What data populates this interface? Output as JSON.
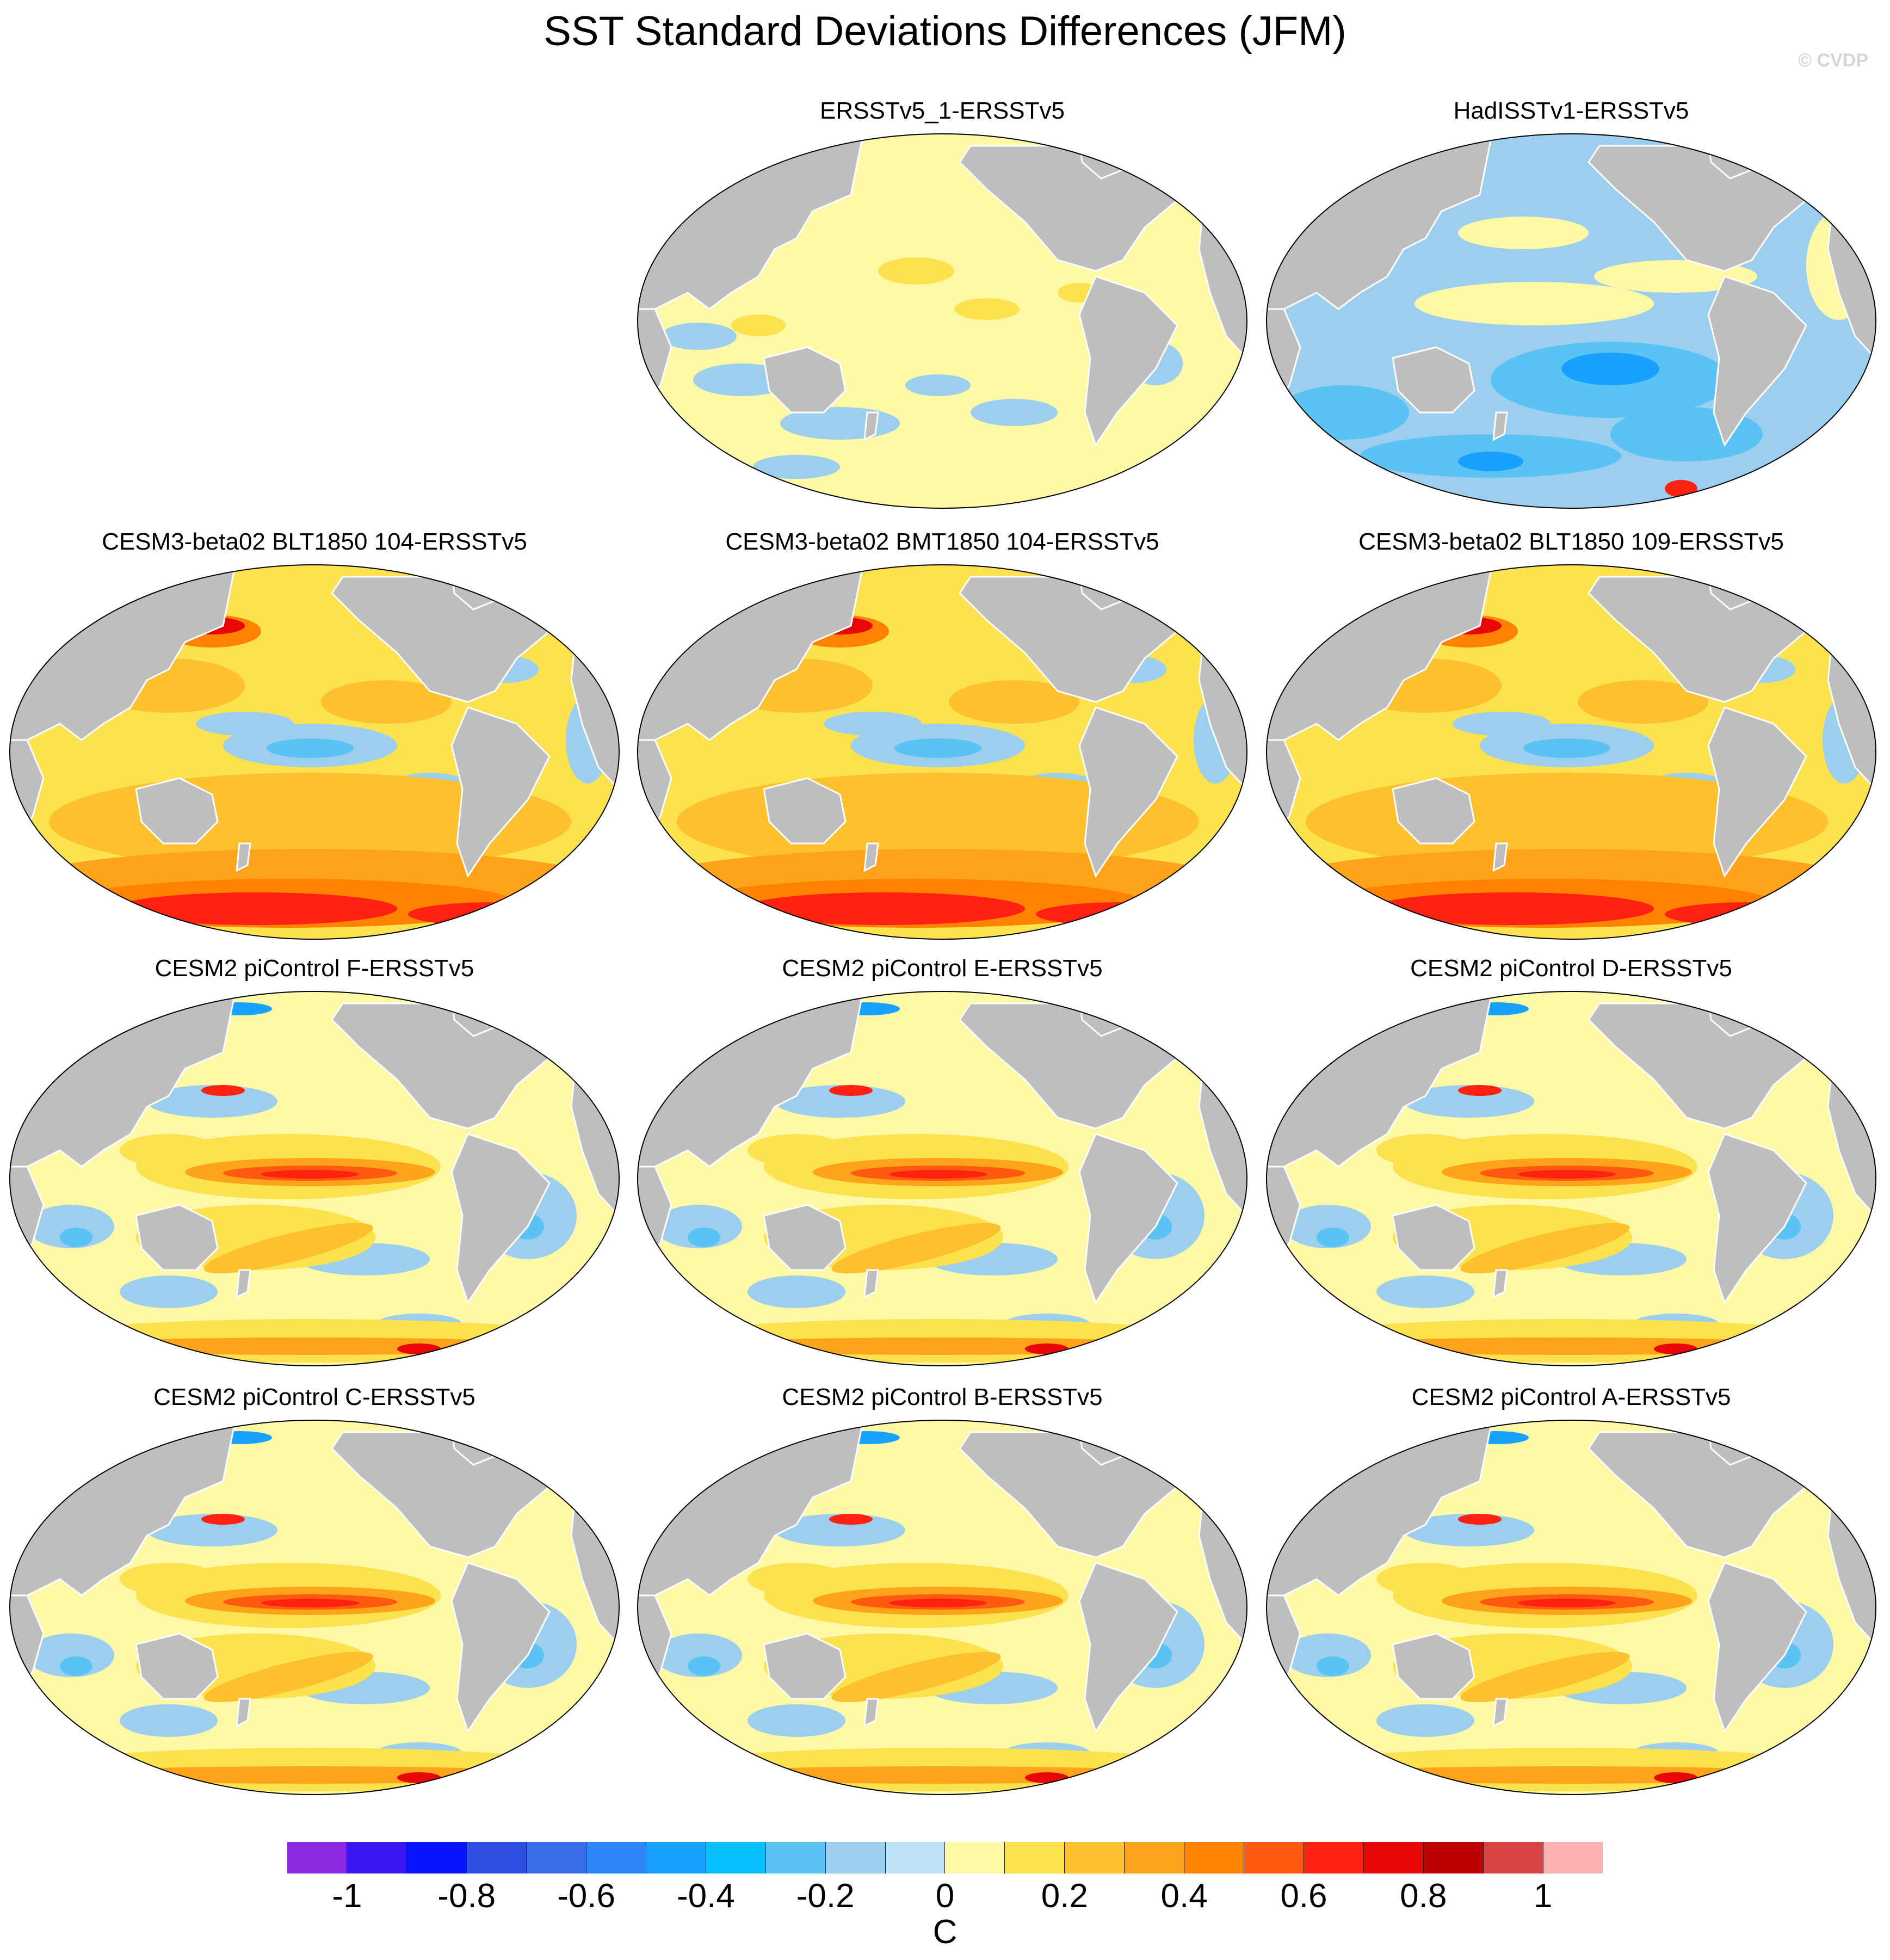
{
  "figure": {
    "title": "SST Standard Deviations Differences (JFM)",
    "watermark": "© CVDP"
  },
  "panels": [
    {
      "title": "ERSSTv5_1-ERSSTv5",
      "pattern": "neutral"
    },
    {
      "title": "HadISSTv1-ERSSTv5",
      "pattern": "cool"
    },
    {
      "title": "CESM3-beta02 BLT1850 104-ERSSTv5",
      "pattern": "warm_south"
    },
    {
      "title": "CESM3-beta02 BMT1850 104-ERSSTv5",
      "pattern": "warm_south"
    },
    {
      "title": "CESM3-beta02 BLT1850 109-ERSSTv5",
      "pattern": "warm_south"
    },
    {
      "title": "CESM2 piControl F-ERSSTv5",
      "pattern": "enso"
    },
    {
      "title": "CESM2 piControl E-ERSSTv5",
      "pattern": "enso"
    },
    {
      "title": "CESM2 piControl D-ERSSTv5",
      "pattern": "enso"
    },
    {
      "title": "CESM2 piControl C-ERSSTv5",
      "pattern": "enso"
    },
    {
      "title": "CESM2 piControl B-ERSSTv5",
      "pattern": "enso"
    },
    {
      "title": "CESM2 piControl A-ERSSTv5",
      "pattern": "enso"
    }
  ],
  "colorbar": {
    "unit": "C",
    "labels": [
      "-1",
      "-0.8",
      "-0.6",
      "-0.4",
      "-0.2",
      "0",
      "0.2",
      "0.4",
      "0.6",
      "0.8",
      "1"
    ],
    "label_values": [
      -1,
      -0.8,
      -0.6,
      -0.4,
      -0.2,
      0,
      0.2,
      0.4,
      0.6,
      0.8,
      1
    ],
    "range": [
      -1.1,
      1.1
    ],
    "colors": [
      "#8a2be2",
      "#3a16f0",
      "#0a14ff",
      "#2e4fe0",
      "#3a6ee6",
      "#2a86f5",
      "#17a2ff",
      "#08beff",
      "#5ac3f4",
      "#9ccfee",
      "#bfe3f6",
      "#fff8a6",
      "#fde24f",
      "#fcc12d",
      "#ffa31a",
      "#ff8300",
      "#ff5a10",
      "#ff2211",
      "#e80606",
      "#bc0000",
      "#d94444",
      "#ffb1b1"
    ],
    "land_color": "#bebebe"
  }
}
